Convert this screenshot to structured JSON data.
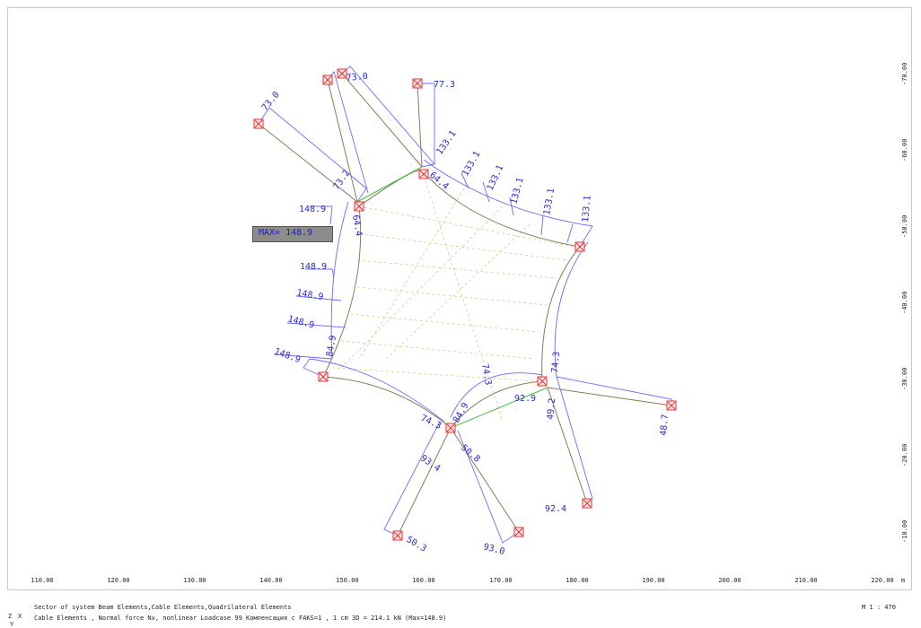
{
  "scale_label": "M 1 : 470",
  "unit_label": "m",
  "x_ticks": [
    "110.00",
    "120.00",
    "130.00",
    "140.00",
    "150.00",
    "160.00",
    "170.00",
    "180.00",
    "190.00",
    "200.00",
    "210.00",
    "220.00"
  ],
  "y_ticks": [
    "-70.00",
    "-60.00",
    "-50.00",
    "-40.00",
    "-30.00",
    "-20.00",
    "-10.00"
  ],
  "footer": {
    "line1": "Sector of system Beam Elements,Cable Elements,Quadrilateral Elements",
    "line2": "Cable Elements , Normal force Nx, nonlinear Loadcase 99  Компенсация с FAKS=1   , 1 cm 3D =  214.1 kN (Max=148.9)",
    "axis_z": "Z",
    "axis_x": "X",
    "axis_y": "Y"
  },
  "max_label": "MAX= 148.9",
  "force_labels": [
    "73.0",
    "73.0",
    "77.3",
    "133.1",
    "133.1",
    "133.1",
    "133.1",
    "133.1",
    "133.1",
    "73.2",
    "64.4",
    "148.9",
    "64.4",
    "148.9",
    "148.9",
    "148.9",
    "148.9",
    "84.9",
    "74.3",
    "74.3",
    "92.9",
    "49.2",
    "48.7",
    "74.3",
    "84.9",
    "93.4",
    "50.8",
    "92.4",
    "50.3",
    "93.0"
  ],
  "colors": {
    "label": "#2a2acf",
    "cable": "#8a7a5a",
    "diagram": "#5a5aff",
    "node": "#e03030",
    "green": "#40c040",
    "mesh": "#d8c890"
  }
}
